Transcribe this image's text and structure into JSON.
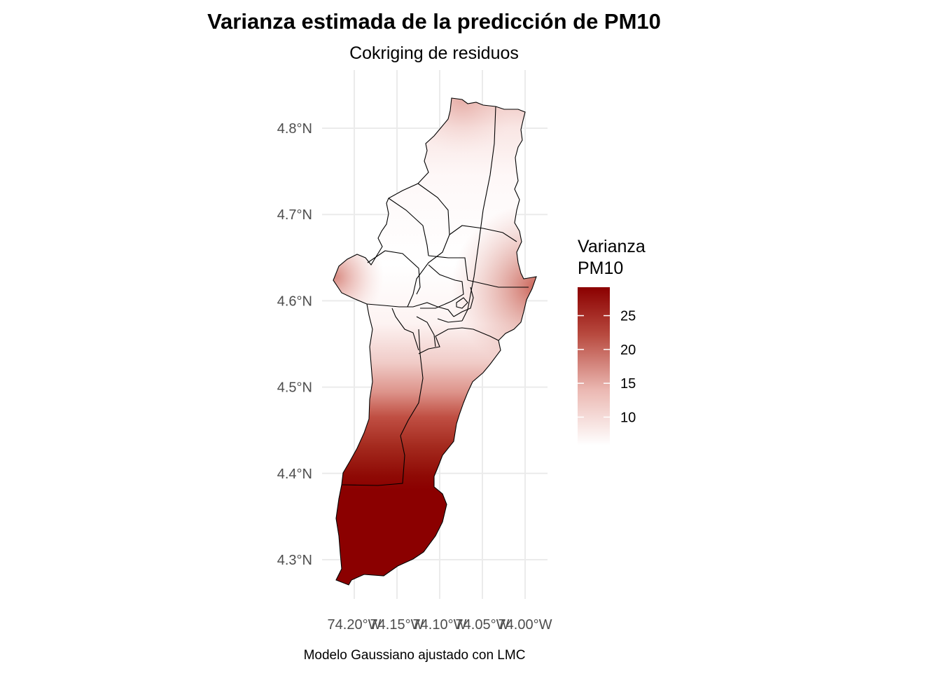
{
  "title": "Varianza estimada de la predicción de PM10",
  "subtitle": "Cokriging de residuos",
  "caption": "Modelo Gaussiano ajustado con LMC",
  "legend": {
    "title_line1": "Varianza",
    "title_line2": "PM10",
    "ticks": [
      {
        "value": 10,
        "label": "10"
      },
      {
        "value": 15,
        "label": "15"
      },
      {
        "value": 20,
        "label": "20"
      },
      {
        "value": 25,
        "label": "25"
      }
    ],
    "range": [
      5.8,
      29.2
    ],
    "colors": {
      "low": "#ffffff",
      "high": "#8b0000"
    }
  },
  "axes": {
    "x_ticks": [
      {
        "value": -74.2,
        "label": "74.20°W"
      },
      {
        "value": -74.15,
        "label": "74.15°W"
      },
      {
        "value": -74.1,
        "label": "74.10°W"
      },
      {
        "value": -74.05,
        "label": "74.05°W"
      },
      {
        "value": -74.0,
        "label": "74.00°W"
      }
    ],
    "y_ticks": [
      {
        "value": 4.3,
        "label": "4.3°N"
      },
      {
        "value": 4.4,
        "label": "4.4°N"
      },
      {
        "value": 4.5,
        "label": "4.5°N"
      },
      {
        "value": 4.6,
        "label": "4.6°N"
      },
      {
        "value": 4.7,
        "label": "4.7°N"
      },
      {
        "value": 4.8,
        "label": "4.8°N"
      }
    ]
  },
  "chart_data": {
    "type": "heatmap",
    "title": "Varianza estimada de la predicción de PM10",
    "subtitle": "Cokriging de residuos",
    "legend_title": "Varianza PM10",
    "legend_placement": "right",
    "grid": true,
    "xlim": [
      -74.24,
      -73.98
    ],
    "ylim": [
      4.26,
      4.84
    ],
    "color_scale": {
      "min": 5.8,
      "max": 29.2,
      "low": "#ffffff",
      "high": "#8b0000"
    },
    "variance_along_latitude": [
      {
        "lat": 4.35,
        "value": 29
      },
      {
        "lat": 4.4,
        "value": 26
      },
      {
        "lat": 4.45,
        "value": 19
      },
      {
        "lat": 4.5,
        "value": 12
      },
      {
        "lat": 4.55,
        "value": 8
      },
      {
        "lat": 4.6,
        "value": 6
      },
      {
        "lat": 4.7,
        "value": 6
      },
      {
        "lat": 4.8,
        "value": 9
      }
    ],
    "edge_highs": [
      {
        "lon": -74.01,
        "lat": 4.61,
        "value": 18
      },
      {
        "lon": -74.21,
        "lat": 4.63,
        "value": 15
      },
      {
        "lon": -74.07,
        "lat": 4.83,
        "value": 12
      }
    ]
  }
}
